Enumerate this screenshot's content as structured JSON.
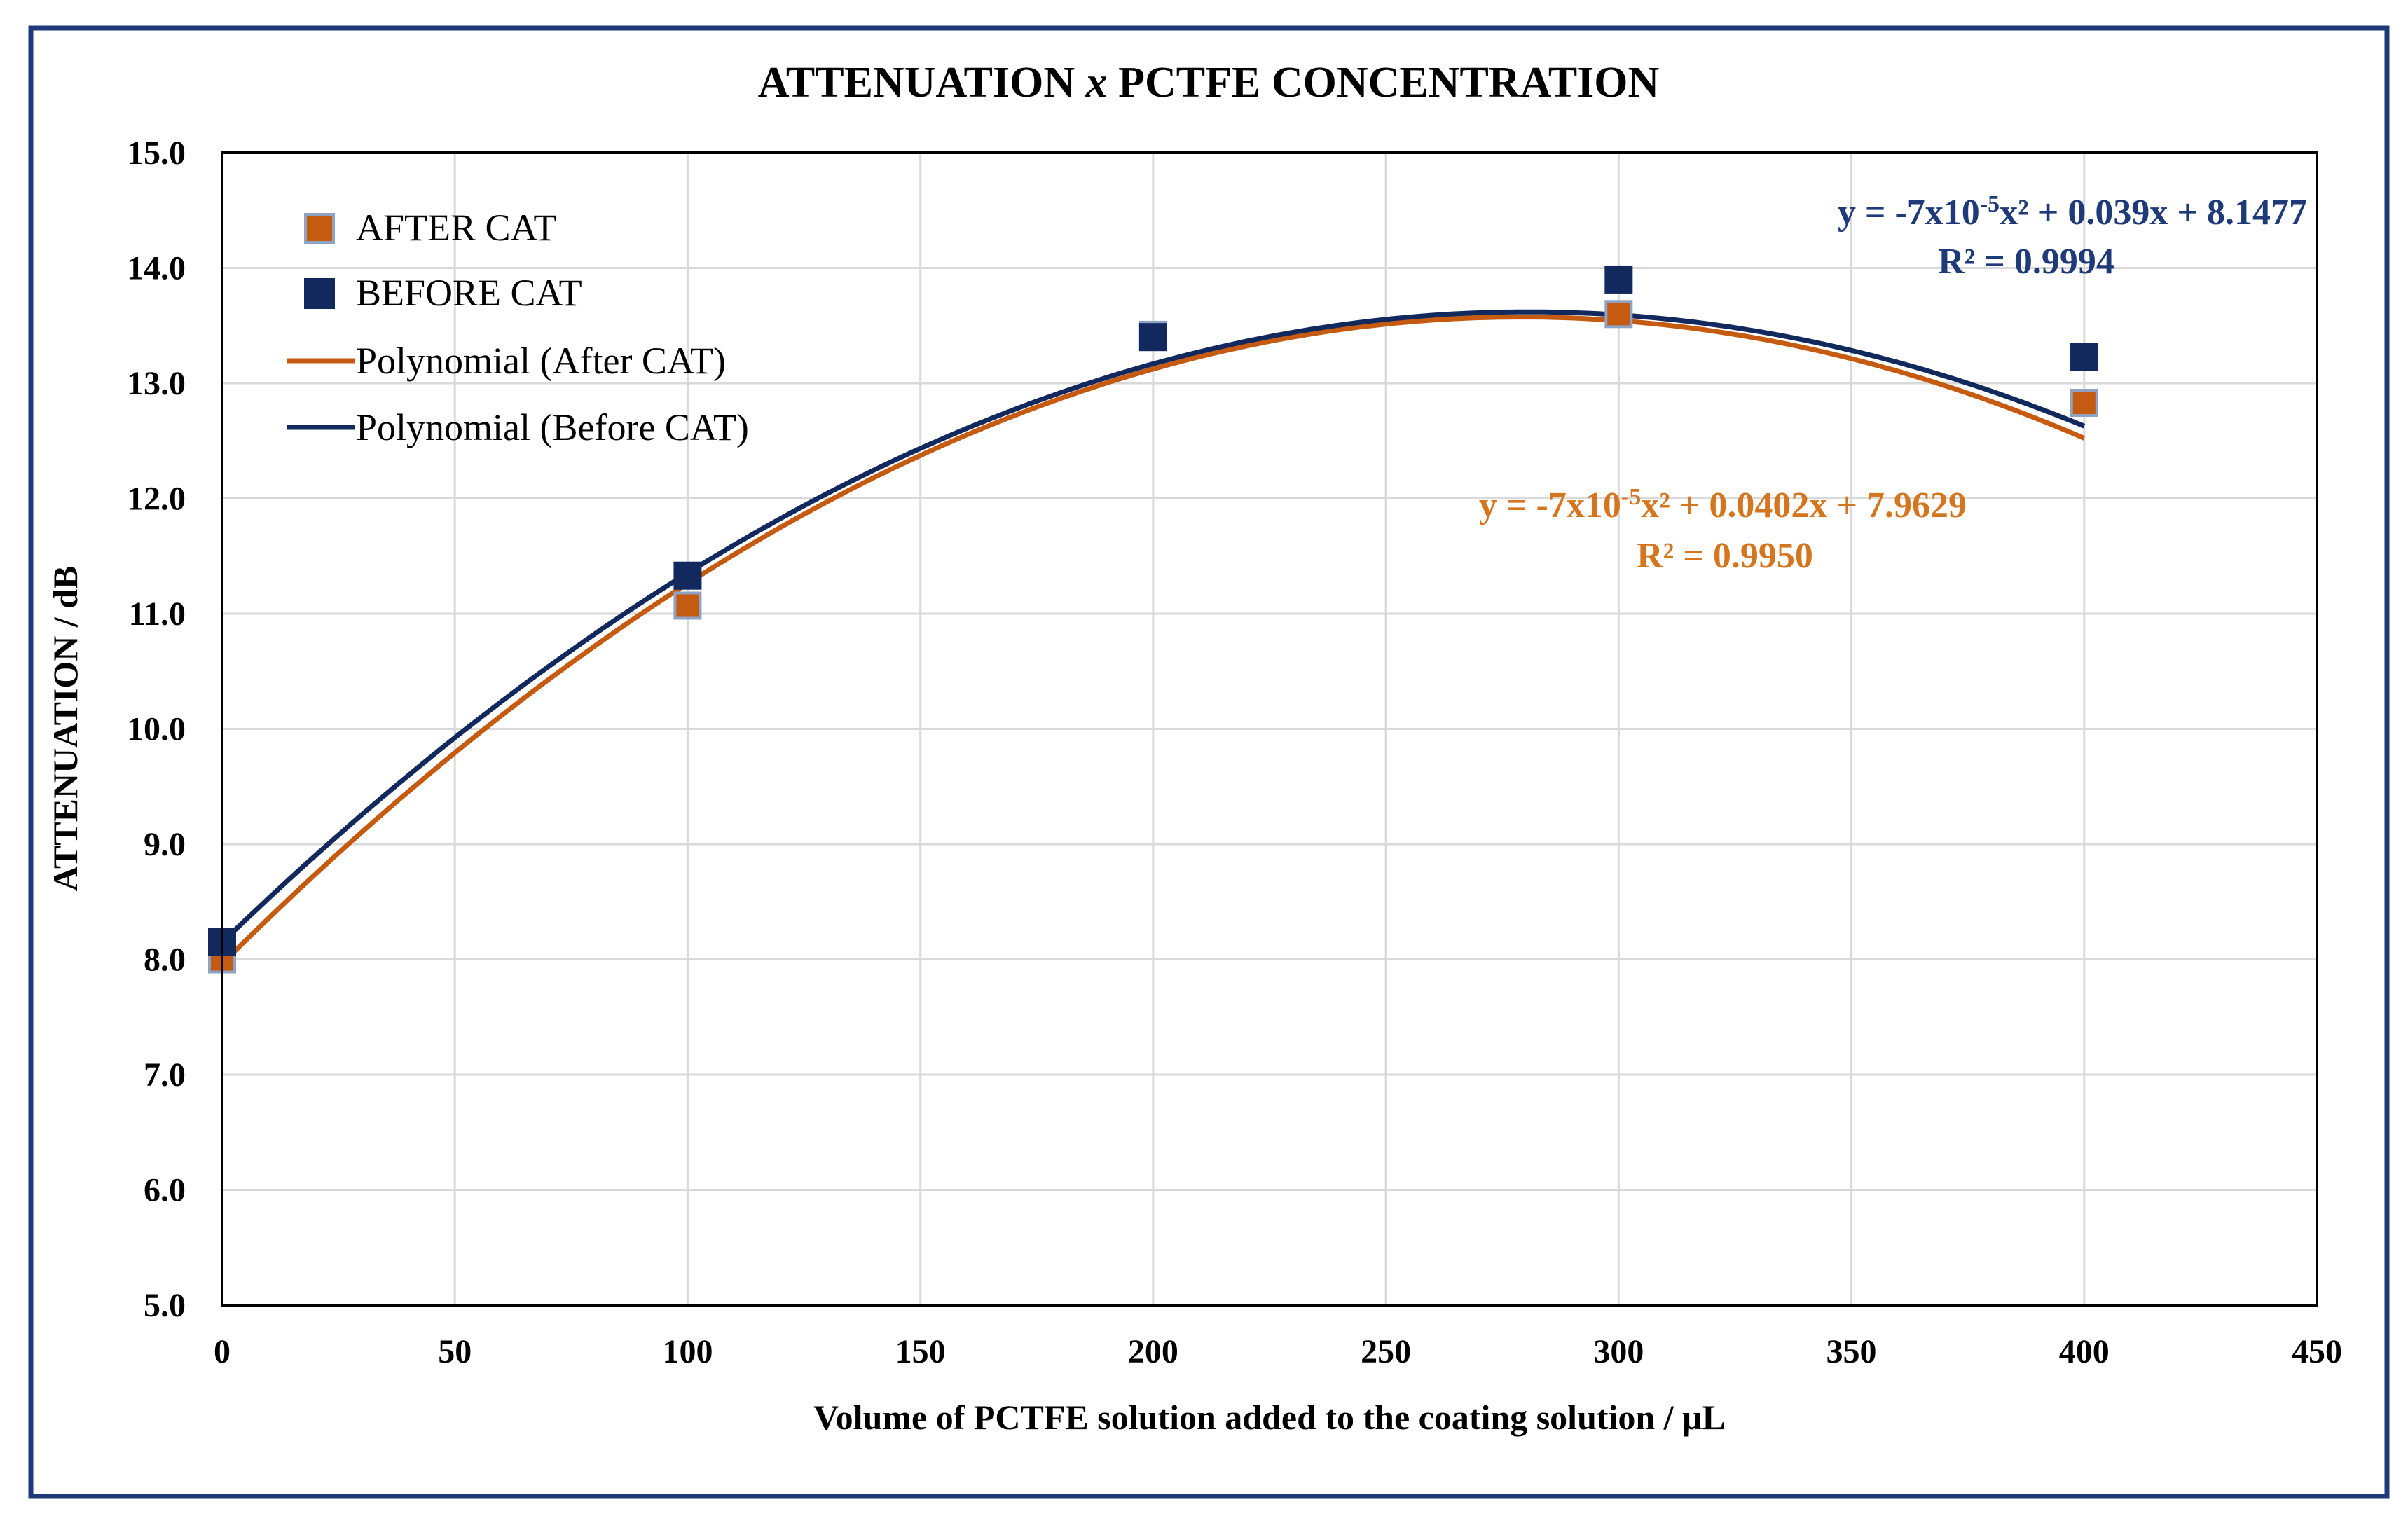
{
  "chart_data": {
    "type": "scatter",
    "title_prefix": "ATTENUATION ",
    "title_italic": "x",
    "title_suffix": " PCTFE CONCENTRATION",
    "xlabel": "Volume of PCTFE solution added to the coating solution / μL",
    "ylabel": "ATTENUATION / dB",
    "xlim": [
      0,
      450
    ],
    "ylim": [
      5.0,
      15.0
    ],
    "x_ticks": [
      0,
      50,
      100,
      150,
      200,
      250,
      300,
      350,
      400,
      450
    ],
    "y_ticks": [
      "5.0",
      "6.0",
      "7.0",
      "8.0",
      "9.0",
      "10.0",
      "11.0",
      "12.0",
      "13.0",
      "14.0",
      "15.0"
    ],
    "grid": true,
    "legend_position": "top-left",
    "series": [
      {
        "name": "AFTER CAT",
        "kind": "points",
        "color": "#C55A11",
        "edge_color": "#8EA3C4",
        "x": [
          0,
          100,
          200,
          300,
          400
        ],
        "y": [
          8.0,
          11.07,
          13.42,
          13.6,
          12.83
        ]
      },
      {
        "name": "BEFORE CAT",
        "kind": "points",
        "color": "#12295E",
        "edge_color": "#12295E",
        "x": [
          0,
          100,
          200,
          300,
          400
        ],
        "y": [
          8.15,
          11.33,
          13.4,
          13.9,
          13.23
        ]
      },
      {
        "name": "Polynomial (After CAT)",
        "kind": "trendline",
        "color": "#C55A11",
        "coefficients": [
          -7.2e-05,
          0.0402,
          7.9629
        ]
      },
      {
        "name": "Polynomial (Before CAT)",
        "kind": "trendline",
        "color": "#12295E",
        "coefficients": [
          -6.95e-05,
          0.039,
          8.1477
        ]
      }
    ],
    "annotations": {
      "before": {
        "color": "#1F3A78",
        "eq_prefix": "y = -7x10",
        "eq_sup": "-5",
        "eq_suffix": "x² + 0.039x + 8.1477",
        "r2": "R² = 0.9994"
      },
      "after": {
        "color": "#D4761F",
        "eq_prefix": "y = -7x10",
        "eq_sup": "-5",
        "eq_suffix": "x² + 0.0402x + 7.9629",
        "r2": "R² = 0.9950"
      }
    }
  }
}
